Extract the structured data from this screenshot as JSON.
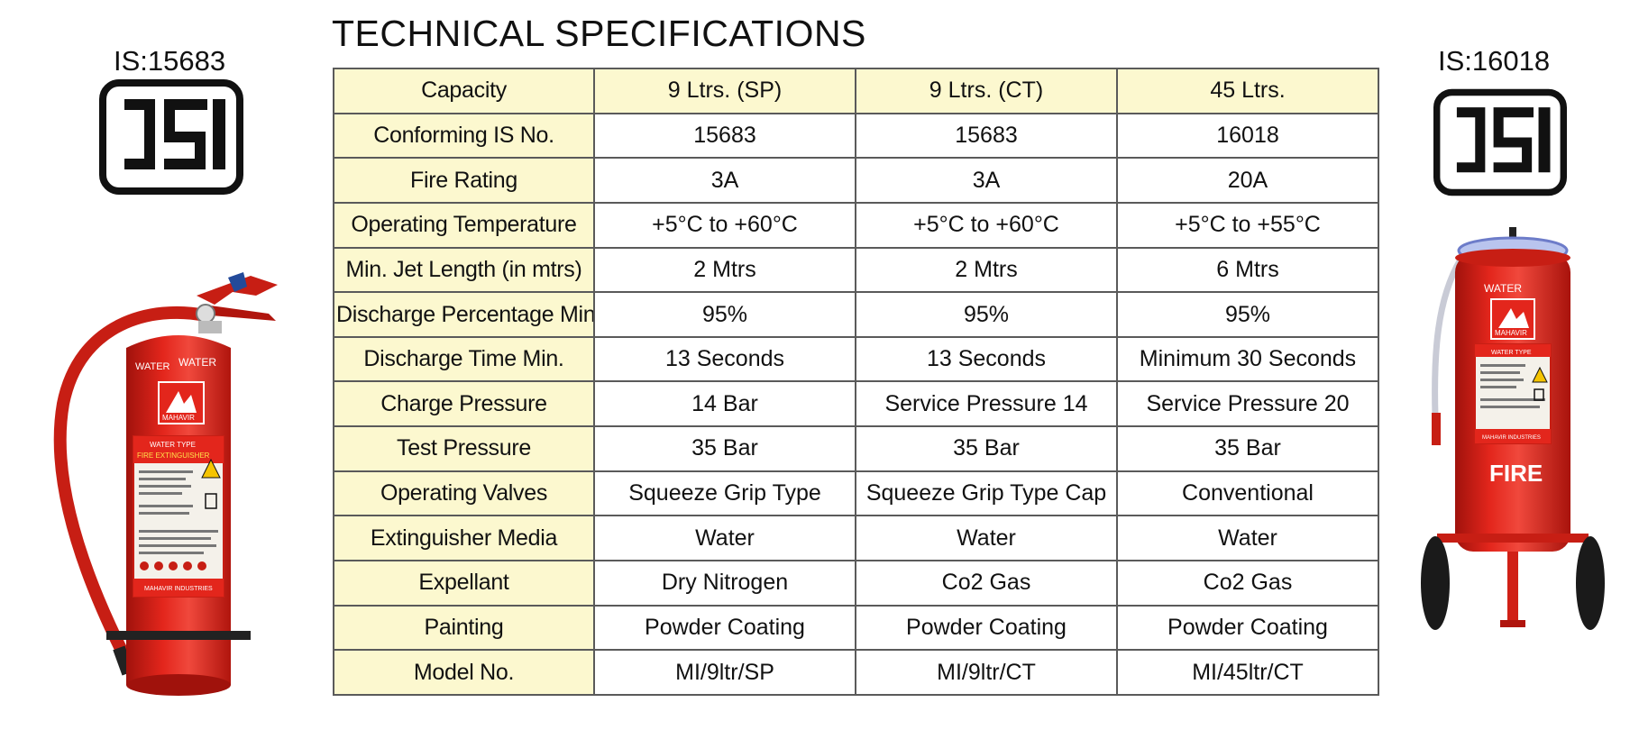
{
  "title": "TECHNICAL SPECIFICATIONS",
  "isi_left": {
    "caption": "IS:15683",
    "icon": "isi-mark-icon"
  },
  "isi_right": {
    "caption": "IS:16018",
    "icon": "isi-mark-icon"
  },
  "extinguishers": {
    "left": {
      "icon": "portable-water-fire-extinguisher-icon",
      "brand": "MAHAVIR",
      "label_top": "WATER",
      "label_top2": "WATER",
      "label_type": "WATER TYPE",
      "label_title": "FIRE EXTINGUISHER",
      "footer": "MAHAVIR INDUSTRIES"
    },
    "right": {
      "icon": "trolley-water-fire-extinguisher-icon",
      "brand": "MAHAVIR",
      "label_top": "WATER",
      "label_type": "WATER TYPE",
      "label_fire": "FIRE",
      "footer": "MAHAVIR INDUSTRIES"
    },
    "colors": {
      "body": "#e3261c",
      "dark": "#a0120c",
      "label": "#f4f1ea"
    }
  },
  "table": {
    "header": {
      "label": "Capacity",
      "values": [
        "9 Ltrs. (SP)",
        "9 Ltrs. (CT)",
        "45 Ltrs."
      ]
    },
    "rows": [
      {
        "label": "Conforming IS No.",
        "values": [
          "15683",
          "15683",
          "16018"
        ]
      },
      {
        "label": "Fire Rating",
        "values": [
          "3A",
          "3A",
          "20A"
        ]
      },
      {
        "label": "Operating Temperature",
        "values": [
          "+5°C to +60°C",
          "+5°C to +60°C",
          "+5°C to +55°C"
        ]
      },
      {
        "label": "Min. Jet Length (in mtrs)",
        "values": [
          "2 Mtrs",
          "2 Mtrs",
          "6 Mtrs"
        ]
      },
      {
        "label": "Discharge Percentage Min.",
        "values": [
          "95%",
          "95%",
          "95%"
        ]
      },
      {
        "label": "Discharge Time Min.",
        "values": [
          "13 Seconds",
          "13 Seconds",
          "Minimum 30 Seconds"
        ]
      },
      {
        "label": "Charge Pressure",
        "values": [
          "14 Bar",
          "Service Pressure  14",
          "Service Pressure 20"
        ]
      },
      {
        "label": "Test Pressure",
        "values": [
          "35 Bar",
          "35 Bar",
          "35 Bar"
        ]
      },
      {
        "label": "Operating Valves",
        "values": [
          "Squeeze Grip Type",
          "Squeeze Grip Type Cap",
          "Conventional"
        ]
      },
      {
        "label": "Extinguisher Media",
        "values": [
          "Water",
          "Water",
          "Water"
        ]
      },
      {
        "label": "Expellant",
        "values": [
          "Dry Nitrogen",
          "Co2 Gas",
          "Co2 Gas"
        ]
      },
      {
        "label": "Painting",
        "values": [
          "Powder Coating",
          "Powder Coating",
          "Powder Coating"
        ]
      },
      {
        "label": "Model No.",
        "values": [
          "MI/9ltr/SP",
          "MI/9ltr/CT",
          "MI/45ltr/CT"
        ]
      }
    ],
    "colors": {
      "label_bg": "#fcf8cf",
      "border": "#5a5a5a"
    }
  }
}
